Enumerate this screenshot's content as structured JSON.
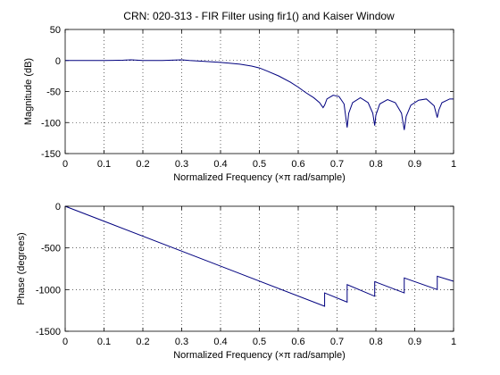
{
  "figure": {
    "title": "CRN: 020-313 - FIR Filter using fir1() and Kaiser Window",
    "colors": {
      "line": "#00007f",
      "axes": "#000000",
      "grid": "#000000",
      "background": "#ffffff"
    }
  },
  "chart_data": [
    {
      "type": "line",
      "title": "CRN: 020-313 - FIR Filter using fir1() and Kaiser Window",
      "xlabel": "Normalized Frequency  (×π rad/sample)",
      "ylabel": "Magnitude (dB)",
      "xlim": [
        0,
        1
      ],
      "ylim": [
        -150,
        50
      ],
      "xticks": [
        "0",
        "0.1",
        "0.2",
        "0.3",
        "0.4",
        "0.5",
        "0.6",
        "0.7",
        "0.8",
        "0.9",
        "1"
      ],
      "yticks": [
        "50",
        "0",
        "-50",
        "-100",
        "-150"
      ],
      "grid": true,
      "series": [
        {
          "x": [
            0,
            0.05,
            0.1,
            0.15,
            0.17,
            0.2,
            0.25,
            0.3,
            0.32,
            0.35,
            0.4,
            0.45,
            0.48,
            0.5,
            0.52,
            0.55,
            0.58,
            0.6,
            0.62,
            0.64,
            0.655,
            0.664,
            0.668,
            0.674,
            0.69,
            0.705,
            0.718,
            0.726,
            0.73,
            0.74,
            0.76,
            0.78,
            0.792,
            0.797,
            0.8,
            0.81,
            0.83,
            0.85,
            0.866,
            0.873,
            0.878,
            0.89,
            0.91,
            0.93,
            0.95,
            0.958,
            0.962,
            0.97,
            0.99,
            1.0
          ],
          "y": [
            0,
            0,
            0,
            0.5,
            1,
            0,
            0,
            1,
            0,
            -1,
            -3,
            -6,
            -9,
            -12,
            -17,
            -25,
            -35,
            -43,
            -52,
            -60,
            -68,
            -76,
            -72,
            -62,
            -56,
            -58,
            -70,
            -108,
            -85,
            -68,
            -60,
            -68,
            -85,
            -105,
            -88,
            -70,
            -63,
            -68,
            -85,
            -112,
            -90,
            -72,
            -64,
            -62,
            -73,
            -92,
            -80,
            -68,
            -62,
            -62
          ]
        }
      ]
    },
    {
      "type": "line",
      "xlabel": "Normalized Frequency  (×π rad/sample)",
      "ylabel": "Phase (degrees)",
      "xlim": [
        0,
        1
      ],
      "ylim": [
        -1500,
        0
      ],
      "xticks": [
        "0",
        "0.1",
        "0.2",
        "0.3",
        "0.4",
        "0.5",
        "0.6",
        "0.7",
        "0.8",
        "0.9",
        "1"
      ],
      "yticks": [
        "0",
        "-500",
        "-1000",
        "-1500"
      ],
      "grid": true,
      "series": [
        {
          "x": [
            0,
            0.668,
            0.668,
            0.726,
            0.726,
            0.797,
            0.797,
            0.873,
            0.873,
            0.958,
            0.958,
            1.0
          ],
          "y": [
            0,
            -1200,
            -1040,
            -1150,
            -940,
            -1080,
            -905,
            -1040,
            -860,
            -1000,
            -840,
            -900
          ]
        }
      ]
    }
  ]
}
